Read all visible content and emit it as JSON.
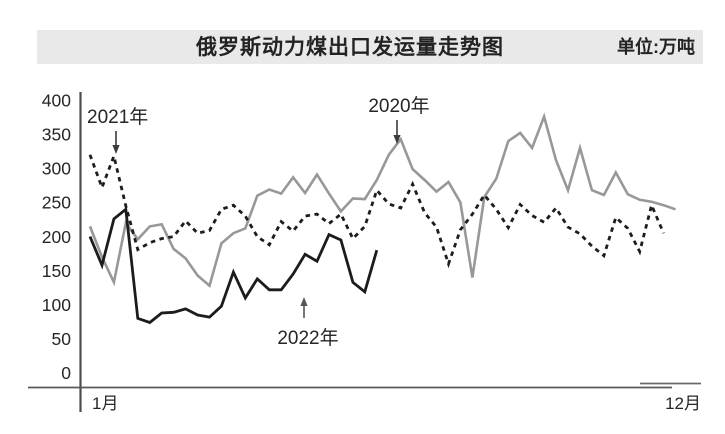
{
  "header": {
    "title": "俄罗斯动力煤出口发运量走势图",
    "unit": "单位:万吨"
  },
  "chart_data": {
    "type": "line",
    "title": "俄罗斯动力煤出口发运量走势图",
    "unit": "单位:万吨",
    "ylim": [
      0,
      400
    ],
    "yticks": [
      400,
      350,
      300,
      250,
      200,
      150,
      100,
      50,
      0
    ],
    "x_axis_labels": {
      "start": "1月",
      "end": "12月"
    },
    "grid": false,
    "legend_position": "inline-annotations",
    "series": [
      {
        "name": "2020",
        "label": "2020年",
        "color": "#97989b",
        "style": "solid",
        "values": [
          215,
          170,
          133,
          220,
          196,
          215,
          218,
          182,
          168,
          143,
          128,
          190,
          205,
          212,
          260,
          269,
          263,
          287,
          264,
          291,
          263,
          237,
          256,
          255,
          283,
          320,
          343,
          299,
          283,
          266,
          280,
          250,
          140,
          258,
          285,
          340,
          352,
          330,
          376,
          312,
          268,
          330,
          268,
          261,
          294,
          262,
          254,
          251,
          246,
          240
        ]
      },
      {
        "name": "2021",
        "label": "2021年",
        "color": "#1d1d1f",
        "style": "dashed",
        "values": [
          320,
          272,
          318,
          245,
          181,
          191,
          197,
          200,
          223,
          205,
          209,
          240,
          246,
          230,
          200,
          188,
          222,
          208,
          230,
          233,
          219,
          233,
          197,
          215,
          268,
          248,
          242,
          277,
          235,
          214,
          160,
          210,
          233,
          261,
          240,
          213,
          247,
          231,
          221,
          242,
          214,
          204,
          186,
          172,
          228,
          212,
          178,
          246,
          205
        ]
      },
      {
        "name": "2022",
        "label": "2022年",
        "color": "#1c1c1c",
        "style": "solid",
        "values": [
          200,
          158,
          226,
          240,
          80,
          74,
          88,
          89,
          94,
          85,
          82,
          98,
          148,
          110,
          138,
          122,
          122,
          145,
          174,
          164,
          203,
          195,
          133,
          119,
          180
        ]
      }
    ],
    "annotations": [
      {
        "label": "2021年",
        "arrow": "down"
      },
      {
        "label": "2020年",
        "arrow": "down"
      },
      {
        "label": "2022年",
        "arrow": "up"
      }
    ]
  }
}
